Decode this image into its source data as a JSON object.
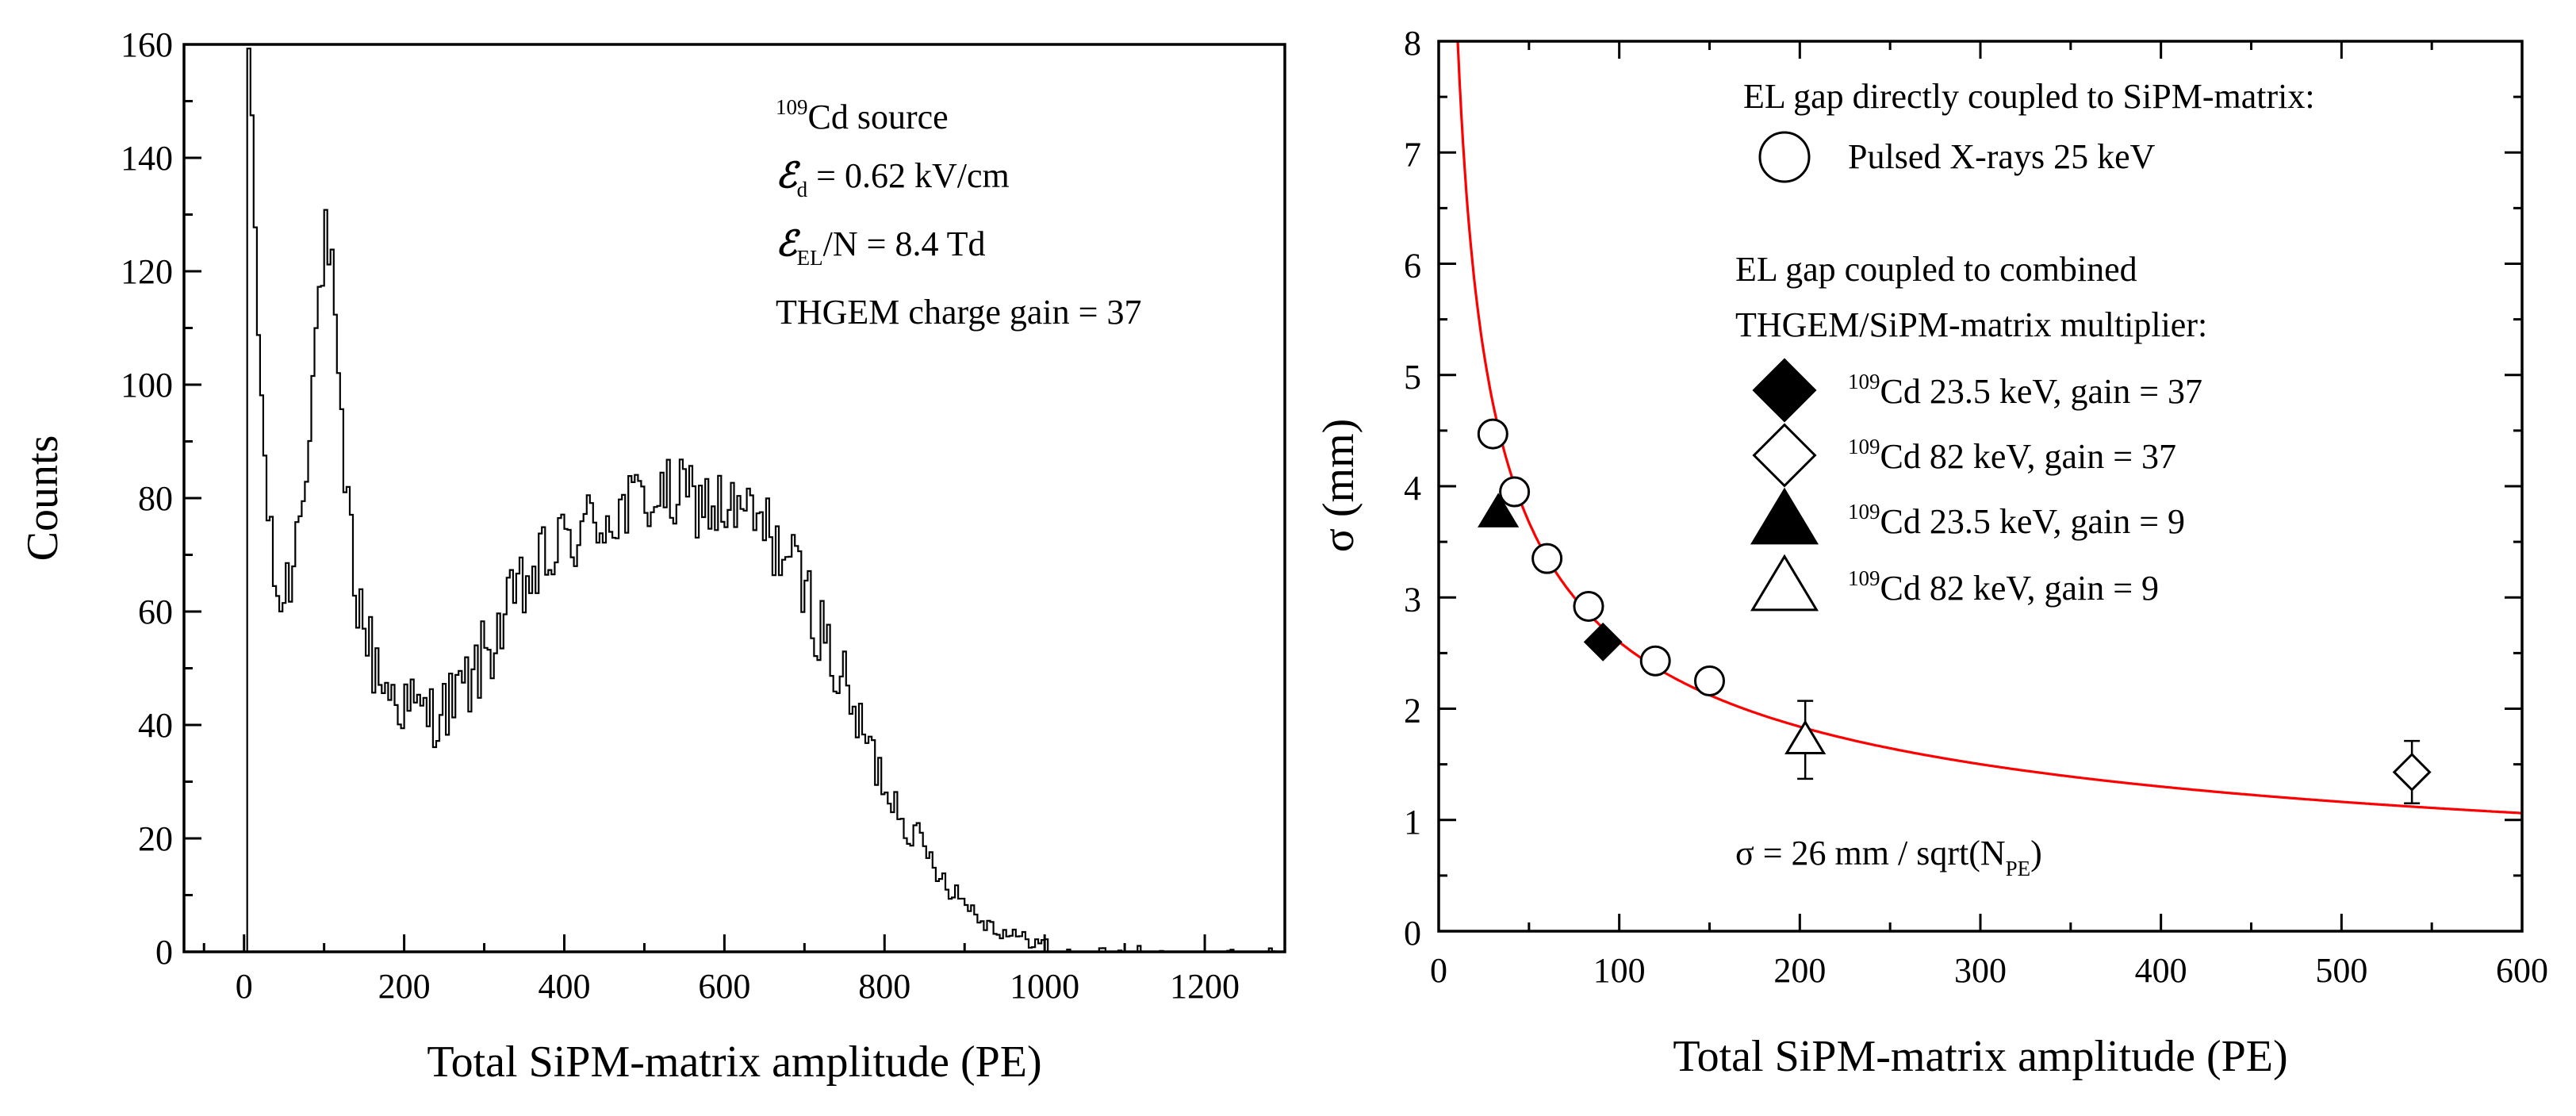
{
  "chart_data": [
    {
      "type": "line",
      "subtype": "histogram",
      "xlabel": "Total SiPM-matrix amplitude (PE)",
      "ylabel": "Counts",
      "xlim": [
        -75,
        1300
      ],
      "ylim": [
        0,
        160
      ],
      "xticks": [
        0,
        200,
        400,
        600,
        800,
        1000,
        1200
      ],
      "yticks": [
        0,
        20,
        40,
        60,
        80,
        100,
        120,
        140,
        160
      ],
      "annotations": {
        "source_sup": "109",
        "source_text": "Cd source",
        "field_symbol": "ℰ",
        "drift_sub": "d",
        "drift_text": " = 0.62 kV/cm",
        "el_sub": "EL",
        "el_text": "/N = 8.4 Td",
        "gain_text": "THGEM charge gain = 37"
      },
      "series": [
        {
          "name": "Cd-109 spectrum",
          "bin_width": 4,
          "envelope_x": [
            0,
            4,
            8,
            12,
            16,
            24,
            32,
            40,
            50,
            60,
            70,
            80,
            90,
            100,
            110,
            120,
            130,
            140,
            150,
            160,
            180,
            200,
            220,
            240,
            260,
            280,
            300,
            320,
            340,
            360,
            380,
            400,
            420,
            440,
            460,
            480,
            500,
            520,
            540,
            560,
            580,
            600,
            620,
            640,
            660,
            680,
            700,
            720,
            740,
            760,
            780,
            800,
            820,
            840,
            860,
            880,
            900,
            920,
            940,
            960,
            980,
            1000,
            1020,
            1040,
            1060,
            1080,
            1100,
            1150,
            1200,
            1250,
            1300
          ],
          "envelope_y": [
            0,
            160,
            155,
            140,
            115,
            92,
            72,
            64,
            62,
            68,
            78,
            92,
            108,
            126,
            118,
            92,
            78,
            64,
            58,
            52,
            46,
            44,
            42,
            42,
            44,
            47,
            52,
            57,
            62,
            66,
            69,
            72,
            74,
            76,
            77,
            78,
            80,
            80,
            80,
            80,
            79,
            78,
            77,
            76,
            73,
            69,
            64,
            57,
            50,
            43,
            36,
            30,
            25,
            20,
            16,
            12,
            9,
            6,
            4,
            3,
            2,
            1.5,
            1,
            0.8,
            0.6,
            0.5,
            0.4,
            0.3,
            0.2,
            0.2,
            0.2
          ],
          "noise": 7
        }
      ]
    },
    {
      "type": "scatter",
      "xlabel": "Total SiPM-matrix amplitude (PE)",
      "ylabel": "σ (mm)",
      "xlim": [
        0,
        600
      ],
      "ylim": [
        0,
        8
      ],
      "xticks": [
        0,
        100,
        200,
        300,
        400,
        500,
        600
      ],
      "yticks": [
        0,
        1,
        2,
        3,
        4,
        5,
        6,
        7,
        8
      ],
      "fit": {
        "coef_mm": 26,
        "label_prefix": "σ = 26 mm / sqrt(N",
        "label_sub": "PE",
        "label_suffix": ")",
        "color": "#ff0000"
      },
      "legend": {
        "heading1": "EL gap directly coupled to SiPM-matrix:",
        "heading2_line1": "EL gap coupled to combined",
        "heading2_line2": "THGEM/SiPM-matrix multiplier:",
        "iso_sup": "109"
      },
      "series": [
        {
          "name": "Pulsed X-rays 25 keV",
          "marker": "circle-open",
          "x": [
            30,
            42,
            60,
            83,
            120,
            150
          ],
          "y": [
            4.47,
            3.95,
            3.35,
            2.92,
            2.43,
            2.25
          ]
        },
        {
          "name": "Cd 23.5 keV,  gain =  37",
          "marker": "diamond-filled",
          "x": [
            91
          ],
          "y": [
            2.6
          ]
        },
        {
          "name": "Cd 82 keV,  gain =  37",
          "marker": "diamond-open",
          "x": [
            539
          ],
          "y": [
            1.43
          ],
          "yerr": [
            0.28
          ]
        },
        {
          "name": "Cd 23.5 keV, gain =  9",
          "marker": "triangle-filled",
          "x": [
            33
          ],
          "y": [
            3.76
          ]
        },
        {
          "name": "Cd 82 keV, gain =  9",
          "marker": "triangle-open",
          "x": [
            203
          ],
          "y": [
            1.72
          ],
          "yerr": [
            0.35
          ]
        }
      ]
    }
  ]
}
